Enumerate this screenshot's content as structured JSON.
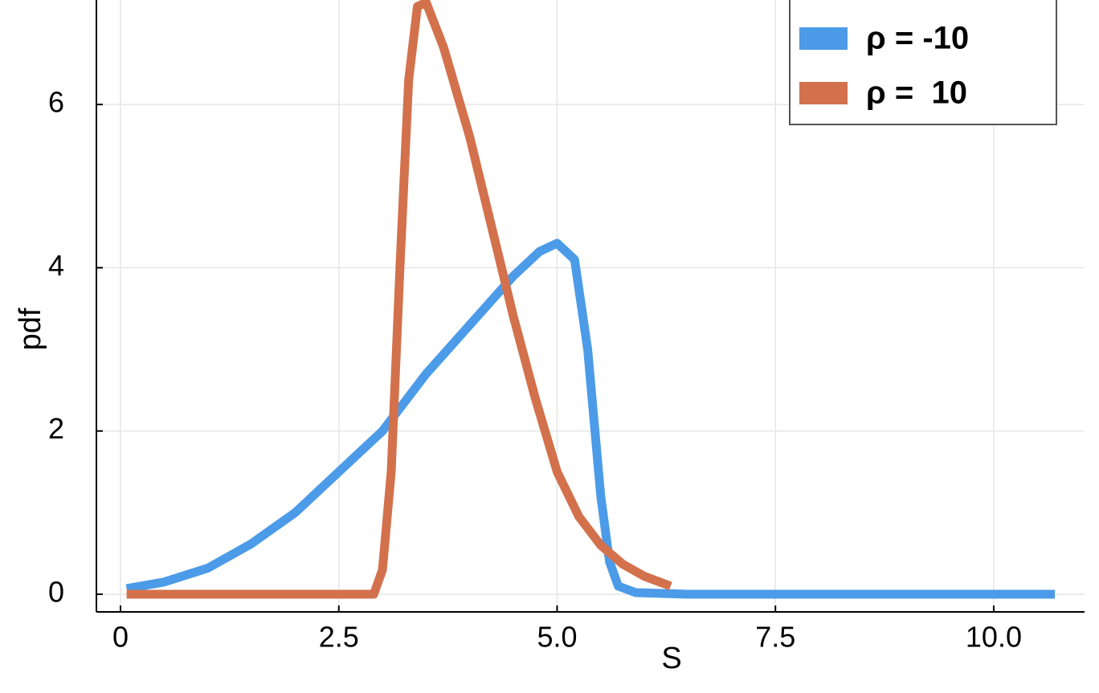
{
  "chart_data": {
    "type": "line",
    "xlabel": "S",
    "ylabel": "pdf",
    "xlim": [
      -0.276,
      11.04
    ],
    "ylim": [
      -0.216,
      7.28
    ],
    "xticks": [
      0,
      2.5,
      {
        "value": 5,
        "label": "5.0"
      },
      7.5,
      {
        "value": 10,
        "label": "10.0"
      }
    ],
    "yticks": [
      0,
      2,
      4,
      6
    ],
    "grid": true,
    "legend": "upper right",
    "series": [
      {
        "name": "ρ = -10",
        "color": "#4c9be8",
        "x": [
          0.07,
          0.5,
          1.0,
          1.5,
          2.0,
          2.5,
          3.0,
          3.5,
          4.0,
          4.5,
          4.8,
          5.0,
          5.2,
          5.35,
          5.5,
          5.6,
          5.7,
          5.9,
          6.5,
          8.0,
          10.7
        ],
        "values": [
          0.07,
          0.15,
          0.32,
          0.62,
          1.0,
          1.5,
          2.0,
          2.7,
          3.3,
          3.9,
          4.2,
          4.3,
          4.1,
          3.0,
          1.2,
          0.4,
          0.1,
          0.02,
          0,
          0,
          0
        ]
      },
      {
        "name": "ρ =  10",
        "color": "#d3714d",
        "x": [
          0.07,
          2.9,
          3.0,
          3.1,
          3.2,
          3.3,
          3.4,
          3.5,
          3.7,
          4.0,
          4.25,
          4.5,
          4.75,
          5.0,
          5.25,
          5.5,
          5.75,
          6.0,
          6.3
        ],
        "values": [
          0,
          0,
          0.3,
          1.5,
          4.0,
          6.3,
          7.2,
          7.25,
          6.7,
          5.6,
          4.5,
          3.4,
          2.4,
          1.5,
          0.95,
          0.6,
          0.37,
          0.22,
          0.1
        ]
      }
    ]
  }
}
